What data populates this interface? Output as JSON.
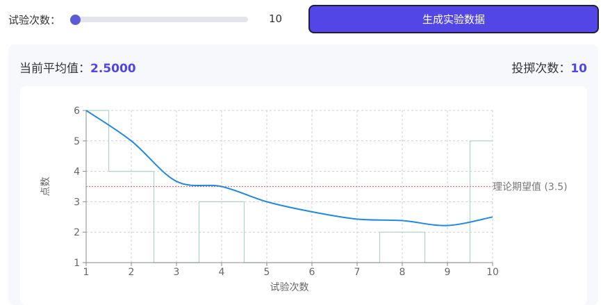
{
  "controls": {
    "trials_label": "试验次数：",
    "trials_value": "10",
    "slider_fraction": 0,
    "generate_label": "生成实验数据",
    "accent_color": "#5247e6"
  },
  "stats": {
    "mean_label": "当前平均值：",
    "mean_value": "2.5000",
    "throws_label": "投掷次数：",
    "throws_value": "10"
  },
  "chart_data": {
    "type": "line",
    "xlabel": "试验次数",
    "ylabel": "点数",
    "xlim": [
      1,
      10
    ],
    "ylim": [
      1,
      6
    ],
    "x_ticks": [
      "1",
      "2",
      "3",
      "4",
      "5",
      "6",
      "7",
      "8",
      "9",
      "10"
    ],
    "y_ticks": [
      "1",
      "2",
      "3",
      "4",
      "5",
      "6"
    ],
    "grid": true,
    "reference_line": {
      "label": "理论期望值 (3.5)",
      "value": 3.5,
      "color": "#e06c75"
    },
    "series": [
      {
        "kind": "running-mean",
        "color": "#1e88e5",
        "x": [
          1,
          2,
          3,
          4,
          5,
          6,
          7,
          8,
          9,
          10
        ],
        "values": [
          6,
          5,
          3.67,
          3.5,
          3,
          2.67,
          2.43,
          2.38,
          2.22,
          2.5
        ]
      },
      {
        "kind": "rolls",
        "color": "#a8d5c9",
        "x": [
          1,
          2,
          3,
          4,
          5,
          6,
          7,
          8,
          9,
          10
        ],
        "values": [
          6,
          4,
          1,
          3,
          1,
          1,
          1,
          2,
          1,
          5
        ]
      }
    ]
  }
}
